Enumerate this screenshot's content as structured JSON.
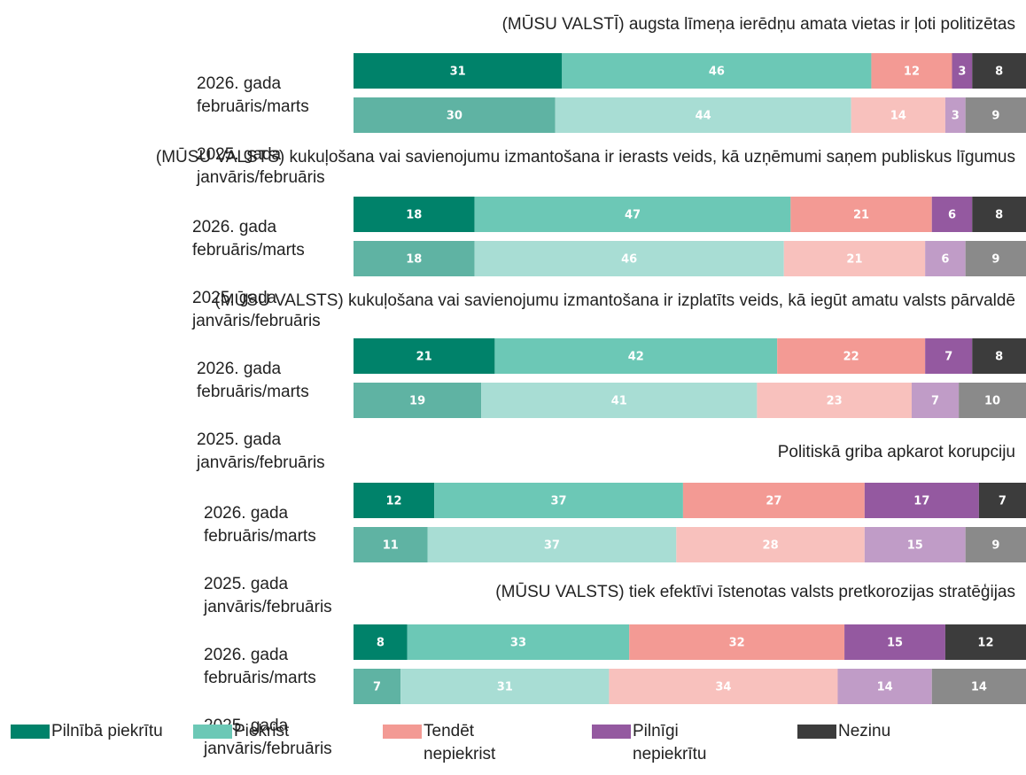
{
  "chart_data": [
    {
      "type": "bar",
      "title": "(MŪSU VALSTĪ) augsta līmeņa ierēdņu amata vietas ir ļoti politizētas",
      "categories": [
        "2026. gada februāris/marts",
        "2025. gada janvāris/februāris"
      ],
      "series": [
        {
          "name": "Pilnībā piekrītu",
          "colors": [
            "#00826a",
            "#5fb3a3"
          ],
          "values": [
            31,
            30
          ]
        },
        {
          "name": "Piekrist",
          "colors": [
            "#6cc8b6",
            "#a8ddd4"
          ],
          "values": [
            46,
            44
          ]
        },
        {
          "name": "Tendēt nepiekrist",
          "colors": [
            "#f39a94",
            "#f8c1bd"
          ],
          "values": [
            12,
            14
          ]
        },
        {
          "name": "Pilnīgi nepiekrītu",
          "colors": [
            "#9459a0",
            "#c09cc7"
          ],
          "values": [
            3,
            3
          ]
        },
        {
          "name": "Nezinu",
          "colors": [
            "#3c3c3c",
            "#8a8a8a"
          ],
          "values": [
            8,
            9
          ]
        }
      ]
    },
    {
      "type": "bar",
      "title": "(MŪSU VALSTS) kukuļošana vai savienojumu izmantošana ir ierasts veids, kā uzņēmumi saņem publiskus līgumus",
      "categories": [
        "2026. gada februāris/marts",
        "2025. gada janvāris/februāris"
      ],
      "series": [
        {
          "name": "Pilnībā piekrītu",
          "colors": [
            "#00826a",
            "#5fb3a3"
          ],
          "values": [
            18,
            18
          ]
        },
        {
          "name": "Piekrist",
          "colors": [
            "#6cc8b6",
            "#a8ddd4"
          ],
          "values": [
            47,
            46
          ]
        },
        {
          "name": "Tendēt nepiekrist",
          "colors": [
            "#f39a94",
            "#f8c1bd"
          ],
          "values": [
            21,
            21
          ]
        },
        {
          "name": "Pilnīgi nepiekrītu",
          "colors": [
            "#9459a0",
            "#c09cc7"
          ],
          "values": [
            6,
            6
          ]
        },
        {
          "name": "Nezinu",
          "colors": [
            "#3c3c3c",
            "#8a8a8a"
          ],
          "values": [
            8,
            9
          ]
        }
      ]
    },
    {
      "type": "bar",
      "title": "(MŪSU VALSTS) kukuļošana vai savienojumu izmantošana ir izplatīts veids, kā iegūt amatu valsts pārvaldē",
      "categories": [
        "2026. gada februāris/marts",
        "2025. gada janvāris/februāris"
      ],
      "series": [
        {
          "name": "Pilnībā piekrītu",
          "colors": [
            "#00826a",
            "#5fb3a3"
          ],
          "values": [
            21,
            19
          ]
        },
        {
          "name": "Piekrist",
          "colors": [
            "#6cc8b6",
            "#a8ddd4"
          ],
          "values": [
            42,
            41
          ]
        },
        {
          "name": "Tendēt nepiekrist",
          "colors": [
            "#f39a94",
            "#f8c1bd"
          ],
          "values": [
            22,
            23
          ]
        },
        {
          "name": "Pilnīgi nepiekrītu",
          "colors": [
            "#9459a0",
            "#c09cc7"
          ],
          "values": [
            7,
            7
          ]
        },
        {
          "name": "Nezinu",
          "colors": [
            "#3c3c3c",
            "#8a8a8a"
          ],
          "values": [
            8,
            10
          ]
        }
      ]
    },
    {
      "type": "bar",
      "title": "Politiskā griba apkarot korupciju",
      "categories": [
        "2026. gada februāris/marts",
        "2025. gada janvāris/februāris"
      ],
      "series": [
        {
          "name": "Pilnībā piekrītu",
          "colors": [
            "#00826a",
            "#5fb3a3"
          ],
          "values": [
            12,
            11
          ]
        },
        {
          "name": "Piekrist",
          "colors": [
            "#6cc8b6",
            "#a8ddd4"
          ],
          "values": [
            37,
            37
          ]
        },
        {
          "name": "Tendēt nepiekrist",
          "colors": [
            "#f39a94",
            "#f8c1bd"
          ],
          "values": [
            27,
            28
          ]
        },
        {
          "name": "Pilnīgi nepiekrītu",
          "colors": [
            "#9459a0",
            "#c09cc7"
          ],
          "values": [
            17,
            15
          ]
        },
        {
          "name": "Nezinu",
          "colors": [
            "#3c3c3c",
            "#8a8a8a"
          ],
          "values": [
            7,
            9
          ]
        }
      ]
    },
    {
      "type": "bar",
      "title": "(MŪSU VALSTS) tiek efektīvi īstenotas valsts pretkorozijas stratēģijas",
      "categories": [
        "2026. gada februāris/marts",
        "2025. gada janvāris/februāris"
      ],
      "series": [
        {
          "name": "Pilnībā piekrītu",
          "colors": [
            "#00826a",
            "#5fb3a3"
          ],
          "values": [
            8,
            7
          ]
        },
        {
          "name": "Piekrist",
          "colors": [
            "#6cc8b6",
            "#a8ddd4"
          ],
          "values": [
            33,
            31
          ]
        },
        {
          "name": "Tendēt nepiekrist",
          "colors": [
            "#f39a94",
            "#f8c1bd"
          ],
          "values": [
            32,
            34
          ]
        },
        {
          "name": "Pilnīgi nepiekrītu",
          "colors": [
            "#9459a0",
            "#c09cc7"
          ],
          "values": [
            15,
            14
          ]
        },
        {
          "name": "Nezinu",
          "colors": [
            "#3c3c3c",
            "#8a8a8a"
          ],
          "values": [
            12,
            14
          ]
        }
      ]
    }
  ]
}
